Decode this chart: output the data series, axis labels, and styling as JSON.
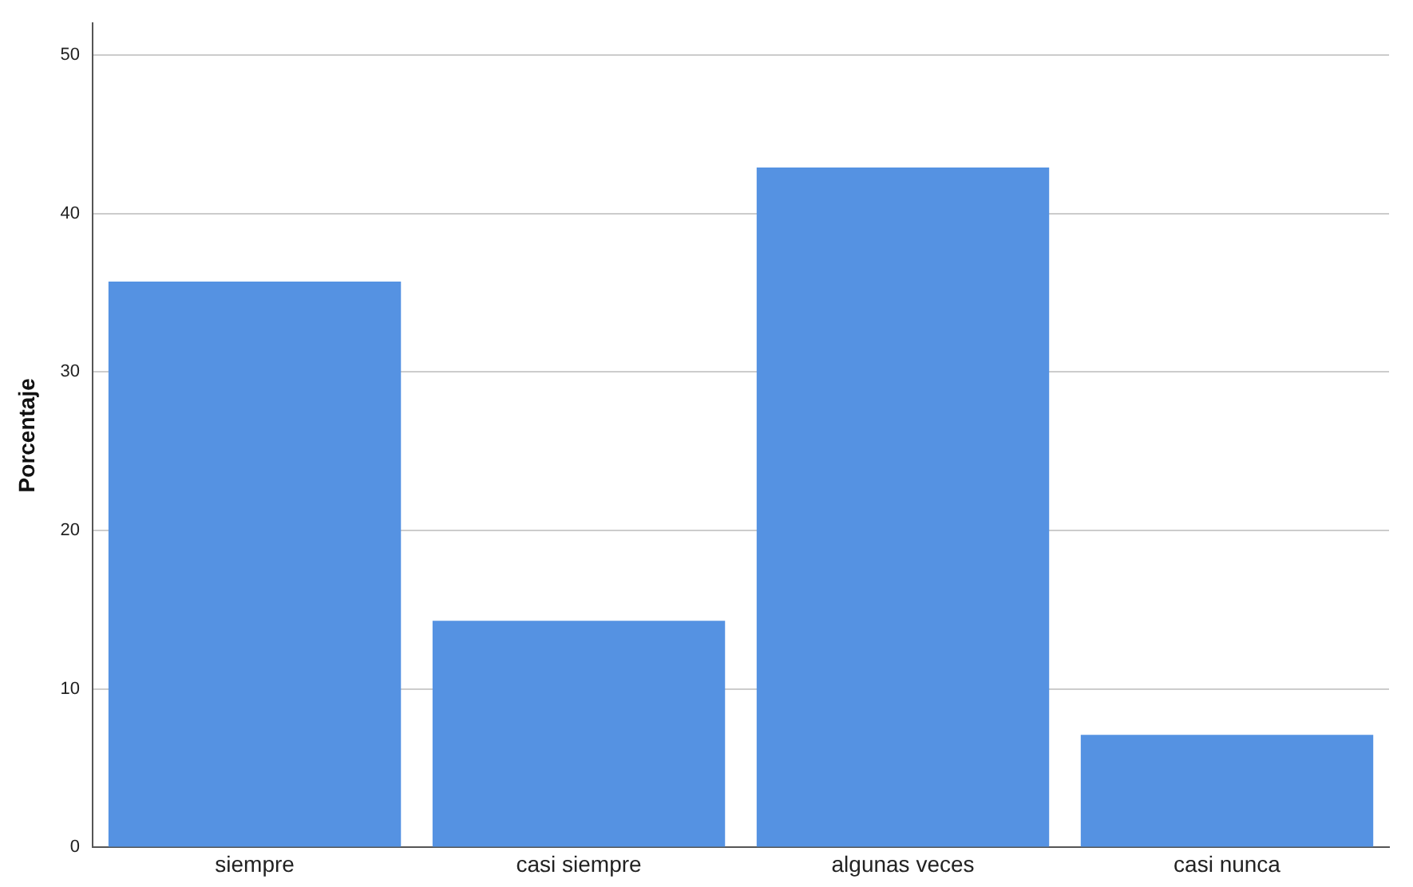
{
  "chart_data": {
    "type": "bar",
    "ylabel": "Porcentaje",
    "categories": [
      "siempre",
      "casi siempre",
      "algunas veces",
      "casi nunca"
    ],
    "values": [
      35.7,
      14.3,
      42.9,
      7.1
    ],
    "color": "#5592e2",
    "ylim": [
      0,
      52
    ],
    "yticks": [
      0,
      10,
      20,
      30,
      40,
      50
    ],
    "grid": "y",
    "legend": false
  }
}
